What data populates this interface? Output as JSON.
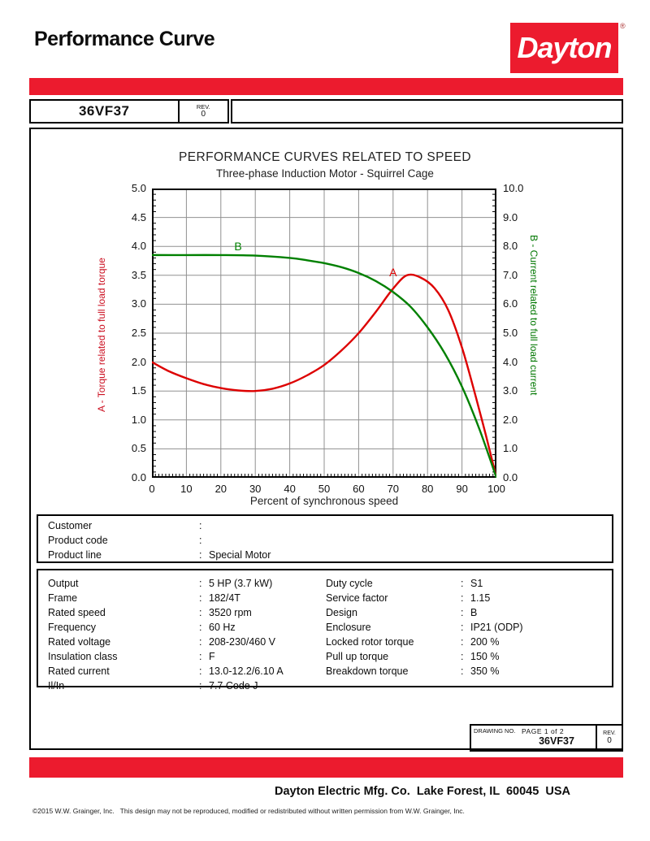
{
  "header": {
    "title": "Performance Curve",
    "logo_text": "Dayton",
    "registered_mark": "®"
  },
  "model_strip": {
    "model": "36VF37",
    "rev_label": "REV.",
    "rev_value": "0"
  },
  "chart_data": {
    "type": "line",
    "title": "PERFORMANCE CURVES RELATED TO SPEED",
    "subtitle": "Three-phase Induction Motor - Squirrel Cage",
    "xlabel": "Percent of synchronous speed",
    "x_range": [
      0,
      100
    ],
    "x_tick_step": 10,
    "grid": true,
    "left_axis": {
      "label": "A - Torque related to full load torque",
      "range": [
        0,
        5
      ],
      "tick_step": 0.5,
      "color": "#cc1122"
    },
    "right_axis": {
      "label": "B - Current related to full load current",
      "range": [
        0,
        10
      ],
      "tick_step": 1.0,
      "color": "#007700"
    },
    "series": [
      {
        "name": "A",
        "axis": "left",
        "color": "#dd0000",
        "label_pos": {
          "x": 70,
          "v": 3.55
        },
        "points": [
          [
            0,
            2.0
          ],
          [
            5,
            1.84
          ],
          [
            10,
            1.72
          ],
          [
            15,
            1.62
          ],
          [
            20,
            1.55
          ],
          [
            25,
            1.51
          ],
          [
            30,
            1.5
          ],
          [
            35,
            1.54
          ],
          [
            40,
            1.63
          ],
          [
            45,
            1.77
          ],
          [
            50,
            1.95
          ],
          [
            55,
            2.2
          ],
          [
            60,
            2.5
          ],
          [
            65,
            2.87
          ],
          [
            70,
            3.27
          ],
          [
            74,
            3.5
          ],
          [
            78,
            3.46
          ],
          [
            82,
            3.28
          ],
          [
            86,
            2.9
          ],
          [
            90,
            2.25
          ],
          [
            94,
            1.4
          ],
          [
            97,
            0.72
          ],
          [
            100,
            0
          ]
        ]
      },
      {
        "name": "B",
        "axis": "right",
        "color": "#008000",
        "label_pos": {
          "x": 25,
          "v": 8.0
        },
        "points": [
          [
            0,
            7.7
          ],
          [
            10,
            7.7
          ],
          [
            20,
            7.7
          ],
          [
            30,
            7.68
          ],
          [
            40,
            7.6
          ],
          [
            45,
            7.52
          ],
          [
            50,
            7.42
          ],
          [
            55,
            7.28
          ],
          [
            60,
            7.08
          ],
          [
            65,
            6.8
          ],
          [
            70,
            6.42
          ],
          [
            75,
            5.92
          ],
          [
            80,
            5.2
          ],
          [
            85,
            4.3
          ],
          [
            90,
            3.15
          ],
          [
            95,
            1.7
          ],
          [
            100,
            0
          ]
        ]
      }
    ]
  },
  "customer_box": {
    "rows": [
      {
        "label": "Customer",
        "value": ""
      },
      {
        "label": "Product code",
        "value": ""
      },
      {
        "label": "Product line",
        "value": "Special Motor"
      }
    ]
  },
  "spec_box": {
    "left": [
      {
        "label": "Output",
        "value": "5 HP (3.7 kW)"
      },
      {
        "label": "Frame",
        "value": "182/4T"
      },
      {
        "label": "Rated speed",
        "value": "3520 rpm"
      },
      {
        "label": "Frequency",
        "value": "60 Hz"
      },
      {
        "label": "Rated voltage",
        "value": "208-230/460 V"
      },
      {
        "label": "Insulation class",
        "value": "F"
      },
      {
        "label": "Rated current",
        "value": "13.0-12.2/6.10 A"
      },
      {
        "label": "Il/In",
        "value": "7.7   Code J"
      }
    ],
    "right": [
      {
        "label": "Duty cycle",
        "value": "S1"
      },
      {
        "label": "Service factor",
        "value": "1.15"
      },
      {
        "label": "Design",
        "value": "B"
      },
      {
        "label": "Enclosure",
        "value": "IP21 (ODP)"
      },
      {
        "label": "Locked rotor torque",
        "value": "200 %"
      },
      {
        "label": "Pull up torque",
        "value": "150 %"
      },
      {
        "label": "Breakdown torque",
        "value": "350 %"
      }
    ]
  },
  "drawing_box": {
    "drawing_no_label": "DRAWING NO.",
    "page_label": "PAGE 1 of 2",
    "drawing_no": "36VF37",
    "rev_label": "REV.",
    "rev_value": "0"
  },
  "footer": {
    "company_line": "Dayton Electric Mfg. Co.  Lake Forest, IL  60045  USA",
    "copyright": "©2015 W.W. Grainger, Inc.   This design may not be reproduced, modified or redistributed without written permission from W.W. Grainger, Inc."
  },
  "colors": {
    "brand_red": "#EC1B2E",
    "curve_red": "#dd0000",
    "curve_green": "#008000",
    "grid_gray": "#909090"
  }
}
